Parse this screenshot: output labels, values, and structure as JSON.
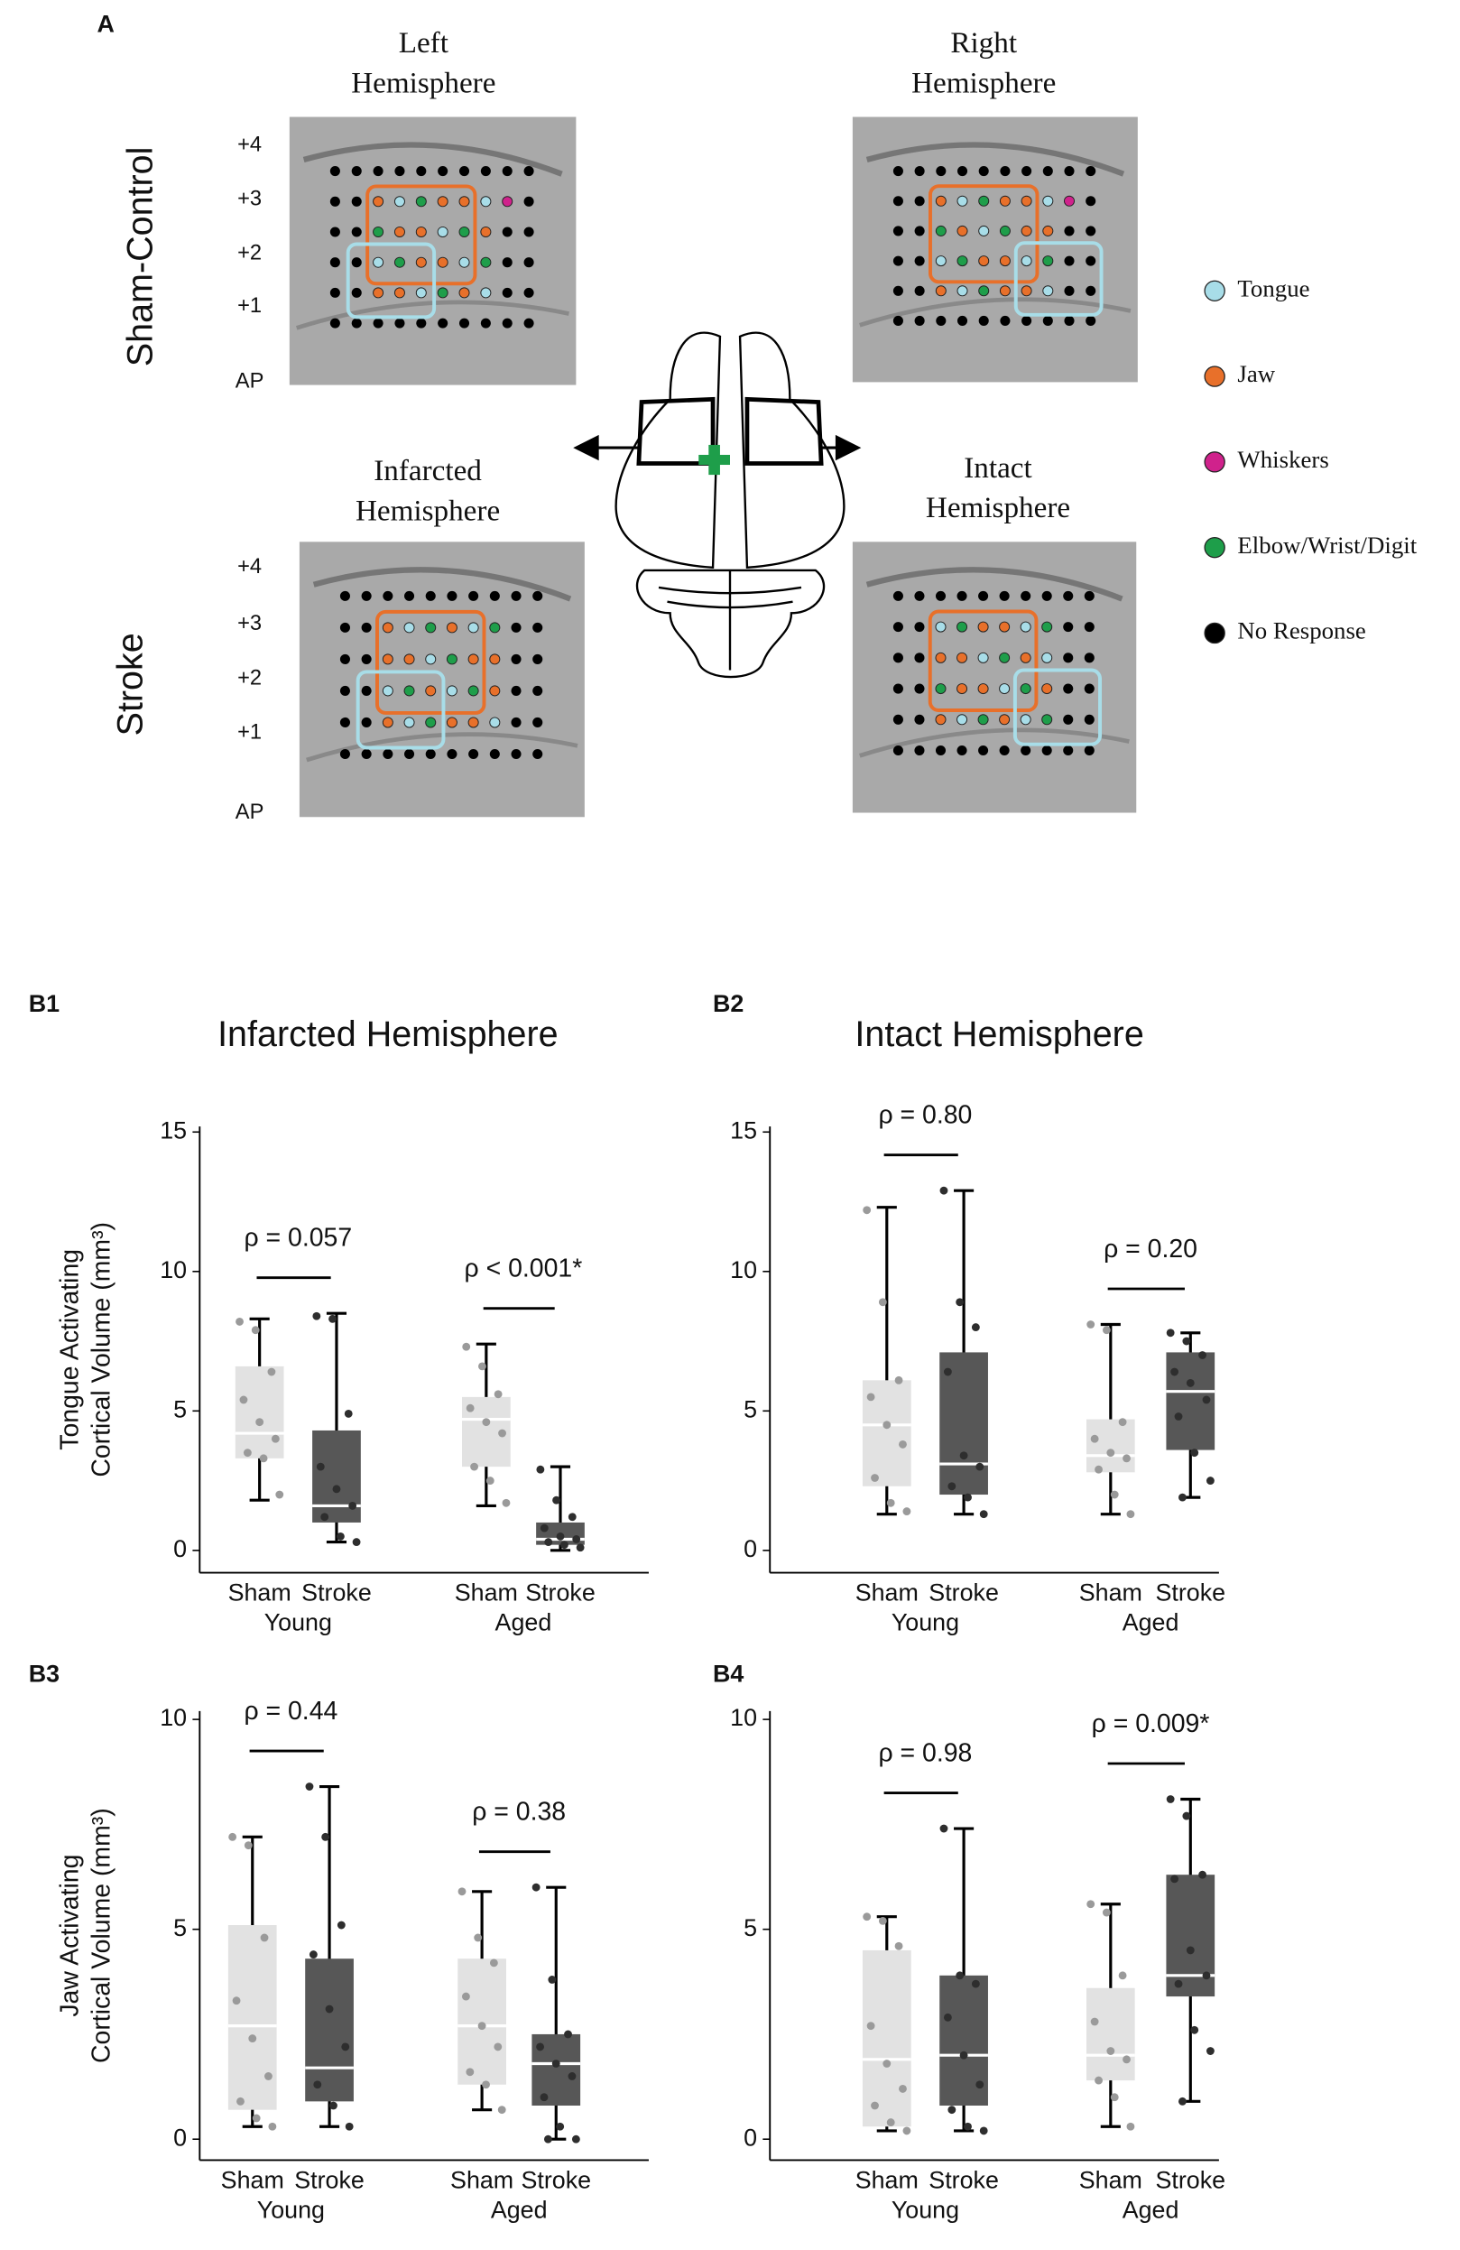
{
  "panel_a": {
    "label": "A",
    "rows": [
      "Sham-Control",
      "Stroke"
    ],
    "maps": [
      {
        "title": [
          "Left",
          "Hemisphere"
        ]
      },
      {
        "title": [
          "Right",
          "Hemisphere"
        ]
      },
      {
        "title": [
          "Infarcted",
          "Hemisphere"
        ]
      },
      {
        "title": [
          "Intact",
          "Hemisphere"
        ]
      }
    ],
    "ap_ticks": [
      "+4",
      "+3",
      "+2",
      "+1"
    ],
    "ap_label": "AP",
    "legend": [
      {
        "name": "Tongue",
        "color": "#a8dde8"
      },
      {
        "name": "Jaw",
        "color": "#e8702a"
      },
      {
        "name": "Whiskers",
        "color": "#d0228c"
      },
      {
        "name": "Elbow/Wrist/Digit",
        "color": "#1e9e4a"
      },
      {
        "name": "No Response",
        "color": "#000000"
      }
    ]
  },
  "chart_data": [
    {
      "type": "box",
      "panel": "B1",
      "title": "Infarcted Hemisphere",
      "ylabel": [
        "Tongue Activating",
        "Cortical Volume (mm³)"
      ],
      "ylim": [
        -0.8,
        15.2
      ],
      "yticks": [
        0,
        5,
        10,
        15
      ],
      "categories": [
        "Sham",
        "Stroke",
        "Sham",
        "Stroke"
      ],
      "groups": [
        "Young",
        "Aged"
      ],
      "box_colors": [
        "#e2e2e2",
        "#575757"
      ],
      "point_colors": [
        "#9a9a9a",
        "#2e2e2e"
      ],
      "boxes": [
        {
          "min": 1.8,
          "q1": 3.3,
          "median": 4.2,
          "q3": 6.6,
          "max": 8.3,
          "points": [
            8.2,
            7.9,
            6.4,
            5.4,
            4.6,
            4.0,
            3.5,
            3.3,
            2.0
          ]
        },
        {
          "min": 0.3,
          "q1": 1.0,
          "median": 1.6,
          "q3": 4.3,
          "max": 8.5,
          "points": [
            8.4,
            8.3,
            4.9,
            3.0,
            2.2,
            1.6,
            1.2,
            0.5,
            0.3
          ]
        },
        {
          "min": 1.6,
          "q1": 3.0,
          "median": 4.7,
          "q3": 5.5,
          "max": 7.4,
          "points": [
            7.3,
            6.6,
            5.6,
            5.1,
            4.6,
            4.2,
            3.0,
            2.5,
            1.7
          ]
        },
        {
          "min": 0.0,
          "q1": 0.2,
          "median": 0.4,
          "q3": 1.0,
          "max": 3.0,
          "points": [
            2.9,
            1.8,
            1.2,
            0.8,
            0.5,
            0.4,
            0.3,
            0.2,
            0.1
          ]
        }
      ],
      "comparisons": [
        "ρ = 0.057",
        "ρ < 0.001*"
      ]
    },
    {
      "type": "box",
      "panel": "B2",
      "title": "Intact Hemisphere",
      "ylim": [
        -0.8,
        15.2
      ],
      "yticks": [
        0,
        5,
        10,
        15
      ],
      "categories": [
        "Sham",
        "Stroke",
        "Sham",
        "Stroke"
      ],
      "groups": [
        "Young",
        "Aged"
      ],
      "box_colors": [
        "#e2e2e2",
        "#575757"
      ],
      "point_colors": [
        "#9a9a9a",
        "#2e2e2e"
      ],
      "boxes": [
        {
          "min": 1.3,
          "q1": 2.3,
          "median": 4.5,
          "q3": 6.1,
          "max": 12.3,
          "points": [
            12.2,
            8.9,
            6.1,
            5.5,
            4.5,
            3.8,
            2.6,
            1.7,
            1.4
          ]
        },
        {
          "min": 1.3,
          "q1": 2.0,
          "median": 3.1,
          "q3": 7.1,
          "max": 12.9,
          "points": [
            12.9,
            8.9,
            8.0,
            6.4,
            3.4,
            3.0,
            2.3,
            1.9,
            1.3
          ]
        },
        {
          "min": 1.3,
          "q1": 2.8,
          "median": 3.4,
          "q3": 4.7,
          "max": 8.1,
          "points": [
            8.1,
            7.9,
            4.6,
            4.0,
            3.5,
            3.3,
            2.9,
            2.0,
            1.3
          ]
        },
        {
          "min": 1.9,
          "q1": 3.6,
          "median": 5.7,
          "q3": 7.1,
          "max": 7.8,
          "points": [
            7.8,
            7.5,
            7.0,
            6.4,
            6.0,
            5.4,
            4.8,
            3.5,
            2.5,
            1.9
          ]
        }
      ],
      "comparisons": [
        "ρ = 0.80",
        "ρ = 0.20"
      ]
    },
    {
      "type": "box",
      "panel": "B3",
      "ylabel": [
        "Jaw Activating",
        "Cortical Volume (mm³)"
      ],
      "ylim": [
        -0.5,
        10.2
      ],
      "yticks": [
        0,
        5,
        10
      ],
      "categories": [
        "Sham",
        "Stroke",
        "Sham",
        "Stroke"
      ],
      "groups": [
        "Young",
        "Aged"
      ],
      "box_colors": [
        "#e2e2e2",
        "#575757"
      ],
      "point_colors": [
        "#9a9a9a",
        "#2e2e2e"
      ],
      "boxes": [
        {
          "min": 0.3,
          "q1": 0.7,
          "median": 2.7,
          "q3": 5.1,
          "max": 7.2,
          "points": [
            7.2,
            7.0,
            4.8,
            3.3,
            2.4,
            1.5,
            0.9,
            0.5,
            0.3
          ]
        },
        {
          "min": 0.3,
          "q1": 0.9,
          "median": 1.7,
          "q3": 4.3,
          "max": 8.4,
          "points": [
            8.4,
            7.2,
            5.1,
            4.4,
            3.1,
            2.2,
            1.3,
            0.8,
            0.3
          ]
        },
        {
          "min": 0.7,
          "q1": 1.3,
          "median": 2.7,
          "q3": 4.3,
          "max": 5.9,
          "points": [
            5.9,
            4.8,
            4.2,
            3.4,
            2.7,
            2.2,
            1.6,
            1.3,
            0.7
          ]
        },
        {
          "min": 0.0,
          "q1": 0.8,
          "median": 1.8,
          "q3": 2.5,
          "max": 6.0,
          "points": [
            6.0,
            3.8,
            2.5,
            2.2,
            1.8,
            1.5,
            1.0,
            0.3,
            0.0,
            0.0
          ]
        }
      ],
      "comparisons": [
        "ρ = 0.44",
        "ρ = 0.38"
      ]
    },
    {
      "type": "box",
      "panel": "B4",
      "ylim": [
        -0.5,
        10.2
      ],
      "yticks": [
        0,
        5,
        10
      ],
      "categories": [
        "Sham",
        "Stroke",
        "Sham",
        "Stroke"
      ],
      "groups": [
        "Young",
        "Aged"
      ],
      "box_colors": [
        "#e2e2e2",
        "#575757"
      ],
      "point_colors": [
        "#9a9a9a",
        "#2e2e2e"
      ],
      "boxes": [
        {
          "min": 0.2,
          "q1": 0.3,
          "median": 1.9,
          "q3": 4.5,
          "max": 5.3,
          "points": [
            5.3,
            5.2,
            4.6,
            2.7,
            1.8,
            1.2,
            0.8,
            0.4,
            0.2
          ]
        },
        {
          "min": 0.2,
          "q1": 0.8,
          "median": 2.0,
          "q3": 3.9,
          "max": 7.4,
          "points": [
            7.4,
            3.9,
            3.7,
            2.9,
            2.0,
            1.3,
            0.7,
            0.3,
            0.2
          ]
        },
        {
          "min": 0.3,
          "q1": 1.4,
          "median": 2.0,
          "q3": 3.6,
          "max": 5.6,
          "points": [
            5.6,
            5.4,
            3.9,
            2.8,
            2.1,
            1.9,
            1.4,
            1.0,
            0.3
          ]
        },
        {
          "min": 0.9,
          "q1": 3.4,
          "median": 3.9,
          "q3": 6.3,
          "max": 8.1,
          "points": [
            8.1,
            7.7,
            6.3,
            6.2,
            4.5,
            3.9,
            3.7,
            2.6,
            2.1,
            0.9
          ]
        }
      ],
      "comparisons": [
        "ρ = 0.98",
        "ρ = 0.009*"
      ]
    }
  ]
}
